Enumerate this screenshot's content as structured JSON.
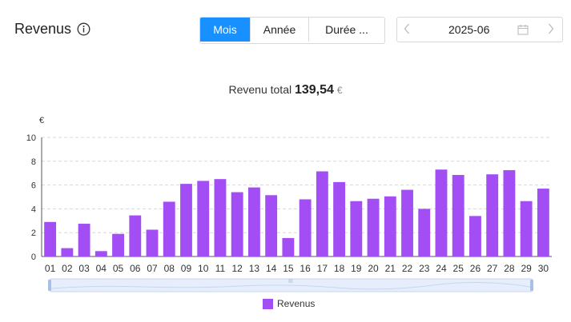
{
  "header": {
    "title": "Revenus",
    "info_icon": "info-circle-icon"
  },
  "period_tabs": [
    {
      "label": "Mois",
      "active": true
    },
    {
      "label": "Année",
      "active": false
    },
    {
      "label": "Durée ...",
      "active": false
    }
  ],
  "date_picker": {
    "value": "2025-06",
    "prev_icon": "chevron-left-icon",
    "next_icon": "chevron-right-icon",
    "calendar_icon": "calendar-icon"
  },
  "summary": {
    "label": "Revenu total",
    "amount": "139,54",
    "currency": "€"
  },
  "colors": {
    "bar": "#a34df5",
    "accent": "#1890ff"
  },
  "chart_data": {
    "type": "bar",
    "ylabel": "€",
    "ylim": [
      0,
      10
    ],
    "yticks": [
      "0",
      "2",
      "4",
      "6",
      "8",
      "10"
    ],
    "grid": true,
    "legend": "bottom-center",
    "categories": [
      "01",
      "02",
      "03",
      "04",
      "05",
      "06",
      "07",
      "08",
      "09",
      "10",
      "11",
      "12",
      "13",
      "14",
      "15",
      "16",
      "17",
      "18",
      "19",
      "20",
      "21",
      "22",
      "23",
      "24",
      "25",
      "26",
      "27",
      "28",
      "29",
      "30"
    ],
    "series": [
      {
        "name": "Revenus",
        "values": [
          2.9,
          0.7,
          2.75,
          0.45,
          1.9,
          3.45,
          2.25,
          4.6,
          6.1,
          6.35,
          6.5,
          5.4,
          5.8,
          5.15,
          1.55,
          4.8,
          7.15,
          6.25,
          4.65,
          4.85,
          5.05,
          5.6,
          4.0,
          7.3,
          6.85,
          3.4,
          6.9,
          7.25,
          4.65,
          5.7
        ]
      }
    ]
  }
}
